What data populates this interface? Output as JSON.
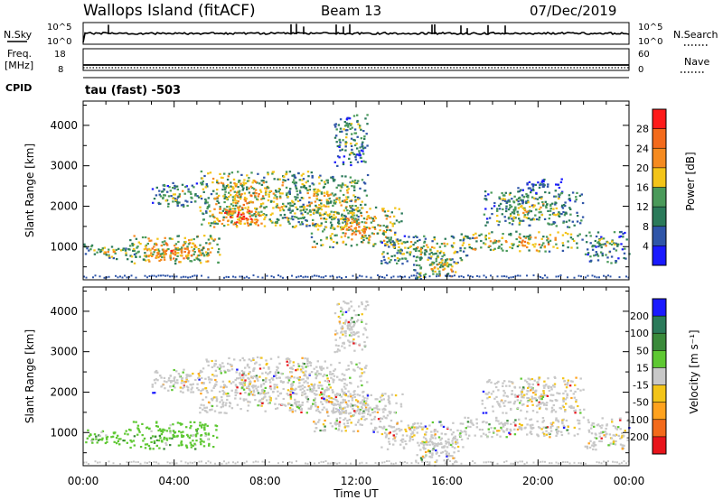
{
  "header": {
    "site": "Wallops Island (fitACF)",
    "beam": "Beam 13",
    "date": "07/Dec/2019"
  },
  "status_panels": {
    "nsky": {
      "label": "N.Sky",
      "ticks": [
        "10^5",
        "10^0"
      ]
    },
    "nsearch": {
      "label": "N.Search",
      "ticks": [
        "10^5",
        "10^0"
      ]
    },
    "freq": {
      "label_line1": "Freq.",
      "label_line2": "[MHz]",
      "ticks": [
        "18",
        "8"
      ]
    },
    "nave": {
      "label": "Nave",
      "ticks": [
        "60",
        "0"
      ]
    },
    "cpid": {
      "label": "CPID",
      "value": "tau (fast) -503"
    }
  },
  "colors": {
    "power": [
      "#1a1aff",
      "#2f55a8",
      "#2b7a5a",
      "#4a9a5a",
      "#f3c418",
      "#f58a1f",
      "#f36a1b",
      "#ff1a1a"
    ],
    "velocity": [
      "#e8141b",
      "#f36a1b",
      "#ffa21e",
      "#f3c418",
      "#c8c8c8",
      "#5ec832",
      "#3a8a3a",
      "#2b7a5a",
      "#1a1aff"
    ]
  },
  "chart_data": [
    {
      "type": "heatmap",
      "name": "power",
      "ylabel": "Slant Range [km]",
      "xlabel": "",
      "x_ticks": [
        "00:00",
        "04:00",
        "08:00",
        "12:00",
        "16:00",
        "20:00",
        "00:00"
      ],
      "y_ticks": [
        1000,
        2000,
        3000,
        4000
      ],
      "xlim_hours": [
        0,
        24
      ],
      "ylim": [
        180,
        4600
      ],
      "colorbar": {
        "label": "Power [dB]",
        "ticks": [
          4,
          8,
          12,
          16,
          20,
          24,
          28
        ],
        "range": [
          0,
          32
        ]
      },
      "regions": [
        {
          "t": [
            0,
            2.5
          ],
          "r": [
            700,
            1100
          ],
          "level": 0.55
        },
        {
          "t": [
            2,
            6
          ],
          "r": [
            600,
            1300
          ],
          "level": 0.7
        },
        {
          "t": [
            2.5,
            5.5
          ],
          "r": [
            700,
            1000
          ],
          "level": 0.78
        },
        {
          "t": [
            3,
            5.5
          ],
          "r": [
            2000,
            2600
          ],
          "level": 0.5
        },
        {
          "t": [
            5,
            10
          ],
          "r": [
            1500,
            2900
          ],
          "level": 0.62
        },
        {
          "t": [
            5.5,
            8
          ],
          "r": [
            1500,
            2000
          ],
          "level": 0.85
        },
        {
          "t": [
            9,
            12.5
          ],
          "r": [
            1500,
            2800
          ],
          "level": 0.58
        },
        {
          "t": [
            10,
            14
          ],
          "r": [
            1000,
            2000
          ],
          "level": 0.66
        },
        {
          "t": [
            13,
            17
          ],
          "r": [
            600,
            1300
          ],
          "level": 0.55
        },
        {
          "t": [
            14.5,
            16.5
          ],
          "r": [
            200,
            800
          ],
          "level": 0.6
        },
        {
          "t": [
            16.5,
            22
          ],
          "r": [
            900,
            1400
          ],
          "level": 0.65
        },
        {
          "t": [
            17.5,
            22
          ],
          "r": [
            1500,
            2400
          ],
          "level": 0.5
        },
        {
          "t": [
            19,
            21
          ],
          "r": [
            2400,
            2700
          ],
          "level": 0.35
        },
        {
          "t": [
            22,
            24
          ],
          "r": [
            600,
            1400
          ],
          "level": 0.45
        },
        {
          "t": [
            11,
            12.5
          ],
          "r": [
            3000,
            4300
          ],
          "level": 0.45
        }
      ]
    },
    {
      "type": "heatmap",
      "name": "velocity",
      "ylabel": "Slant Range [km]",
      "xlabel": "Time UT",
      "x_ticks": [
        "00:00",
        "04:00",
        "08:00",
        "12:00",
        "16:00",
        "20:00",
        "00:00"
      ],
      "y_ticks": [
        1000,
        2000,
        3000,
        4000
      ],
      "xlim_hours": [
        0,
        24
      ],
      "ylim": [
        180,
        4600
      ],
      "colorbar": {
        "label": "Velocity [m s⁻¹]",
        "ticks": [
          "200",
          "100",
          "50",
          "15",
          "-15",
          "-50",
          "-100",
          "-200"
        ]
      },
      "regions": [
        {
          "t": [
            0,
            2
          ],
          "r": [
            700,
            1100
          ],
          "level": 0.6
        },
        {
          "t": [
            2,
            6
          ],
          "r": [
            600,
            1300
          ],
          "level": 0.62
        },
        {
          "t": [
            3,
            5.5
          ],
          "r": [
            2000,
            2600
          ],
          "level": 0.5
        },
        {
          "t": [
            5,
            10
          ],
          "r": [
            1500,
            2900
          ],
          "level": 0.5
        },
        {
          "t": [
            9,
            12.5
          ],
          "r": [
            1500,
            2800
          ],
          "level": 0.5
        },
        {
          "t": [
            10,
            14
          ],
          "r": [
            1000,
            2000
          ],
          "level": 0.5
        },
        {
          "t": [
            13,
            17
          ],
          "r": [
            600,
            1300
          ],
          "level": 0.5
        },
        {
          "t": [
            14.5,
            16.5
          ],
          "r": [
            200,
            800
          ],
          "level": 0.5
        },
        {
          "t": [
            16.5,
            22
          ],
          "r": [
            900,
            1400
          ],
          "level": 0.5
        },
        {
          "t": [
            17.5,
            22
          ],
          "r": [
            1500,
            2400
          ],
          "level": 0.5
        },
        {
          "t": [
            22,
            24
          ],
          "r": [
            600,
            1400
          ],
          "level": 0.5
        },
        {
          "t": [
            11,
            12.5
          ],
          "r": [
            3000,
            4300
          ],
          "level": 0.5
        }
      ]
    }
  ]
}
